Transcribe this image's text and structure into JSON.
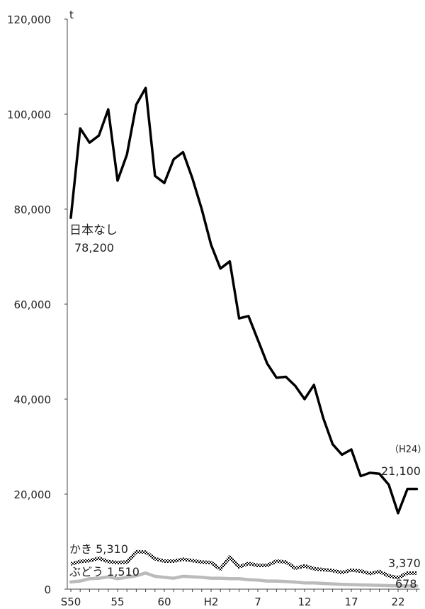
{
  "chart_data": {
    "type": "line",
    "y_unit": "t",
    "ylim": [
      0,
      120000
    ],
    "y_ticks": [
      0,
      20000,
      40000,
      60000,
      80000,
      100000,
      120000
    ],
    "y_tick_labels": [
      "0",
      "20,000",
      "40,000",
      "60,000",
      "80,000",
      "100,000",
      "120,000"
    ],
    "x_tick_labels": [
      {
        "year": "S50",
        "index": 0
      },
      {
        "year": "55",
        "index": 5
      },
      {
        "year": "60",
        "index": 10
      },
      {
        "year": "H2",
        "index": 15
      },
      {
        "year": "7",
        "index": 20
      },
      {
        "year": "12",
        "index": 25
      },
      {
        "year": "17",
        "index": 30
      },
      {
        "year": "22",
        "index": 35
      }
    ],
    "x_count": 38,
    "series": [
      {
        "name": "日本なし",
        "color": "#000000",
        "style": "solid",
        "values": [
          78200,
          97000,
          94000,
          95500,
          101000,
          86000,
          91500,
          102000,
          105500,
          87000,
          85500,
          90500,
          92000,
          86500,
          80000,
          72500,
          67500,
          69000,
          57000,
          57500,
          52500,
          47500,
          44500,
          44700,
          42800,
          40000,
          43000,
          36000,
          30500,
          28300,
          29400,
          23800,
          24500,
          24300,
          22000,
          16000,
          21100,
          21100
        ]
      },
      {
        "name": "かき",
        "color": "#000000",
        "style": "checker",
        "values": [
          5310,
          5800,
          6000,
          6500,
          5800,
          5600,
          5700,
          7900,
          7800,
          6400,
          5900,
          5900,
          6300,
          6000,
          5700,
          5600,
          4200,
          6800,
          4700,
          5400,
          5000,
          5000,
          5900,
          5700,
          4400,
          4900,
          4300,
          4100,
          3900,
          3500,
          4000,
          3800,
          3300,
          3700,
          2800,
          2400,
          3370,
          3370
        ]
      },
      {
        "name": "ぶどう",
        "color": "#bbbbbb",
        "style": "solid",
        "values": [
          1510,
          1700,
          2200,
          2300,
          2600,
          2200,
          2500,
          2800,
          3400,
          2700,
          2500,
          2300,
          2700,
          2600,
          2500,
          2300,
          2300,
          2200,
          2200,
          2000,
          1900,
          1700,
          1700,
          1600,
          1500,
          1300,
          1300,
          1200,
          1100,
          1000,
          950,
          900,
          850,
          800,
          750,
          700,
          678,
          678
        ]
      }
    ],
    "annotations": {
      "nashi_name": "日本なし",
      "nashi_start": "78,200",
      "nashi_end_year": "（H24）",
      "nashi_end": "21,100",
      "kaki_start_label": "かき 5,310",
      "kaki_end": "3,370",
      "budou_start_label": "ぶどう 1,510",
      "budou_end": "678"
    }
  }
}
